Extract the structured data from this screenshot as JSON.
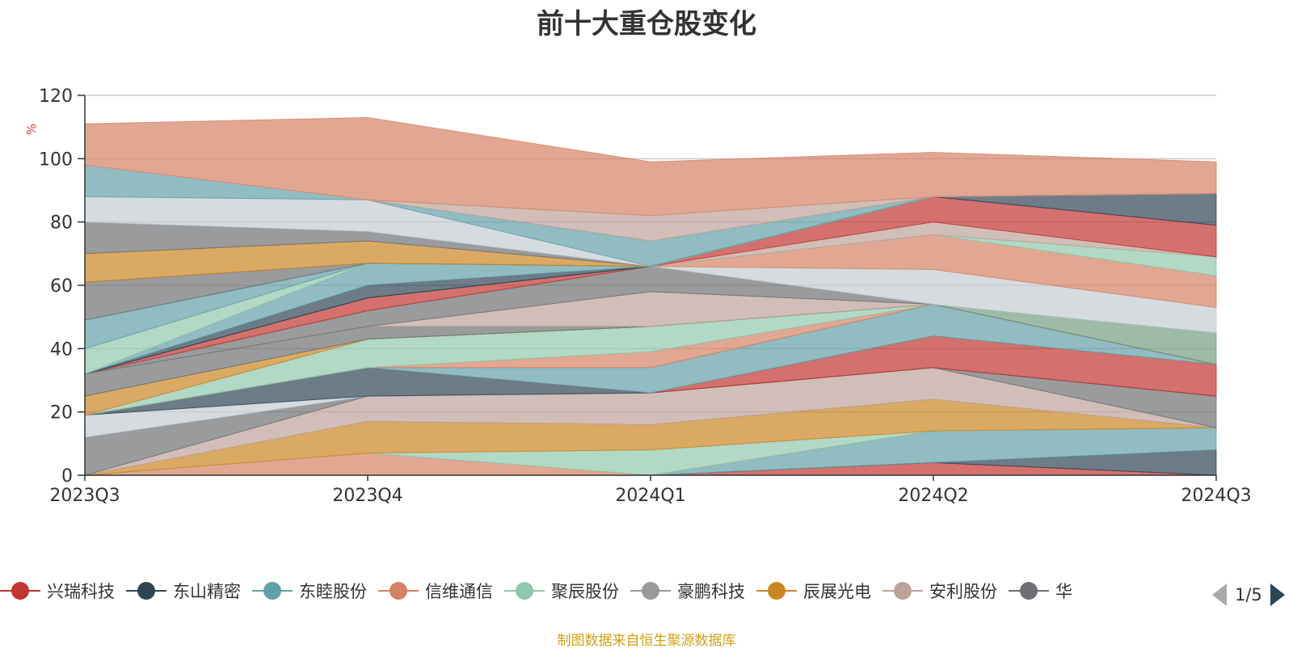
{
  "title": "前十大重仓股变化",
  "source_note": "制图数据来自恒生聚源数据库",
  "legend_page": "1/5",
  "chart_data": {
    "type": "area",
    "title": "前十大重仓股变化",
    "ylabel": "%",
    "ylim": [
      0,
      120
    ],
    "yticks": [
      0,
      20,
      40,
      60,
      80,
      100,
      120
    ],
    "grid": true,
    "categories": [
      "2023Q3",
      "2023Q4",
      "2024Q1",
      "2024Q2",
      "2024Q3"
    ],
    "legend_position": "bottom",
    "legend": [
      "兴瑞科技",
      "东山精密",
      "东睦股份",
      "信维通信",
      "聚辰股份",
      "豪鹏科技",
      "辰展光电",
      "安利股份",
      "华"
    ],
    "series": [
      {
        "name": "兴瑞科技",
        "color": "#c23531",
        "values": [
          0,
          0,
          0,
          4,
          0
        ]
      },
      {
        "name": "东山精密",
        "color": "#2f4554",
        "values": [
          0,
          0,
          0,
          0,
          8
        ]
      },
      {
        "name": "东睦股份",
        "color": "#61a0a8",
        "values": [
          0,
          0,
          0,
          10,
          7
        ]
      },
      {
        "name": "信维通信",
        "color": "#d48265",
        "values": [
          0,
          7,
          0,
          0,
          0
        ]
      },
      {
        "name": "聚辰股份",
        "color": "#91c7ae",
        "values": [
          0,
          0,
          8,
          0,
          0
        ]
      },
      {
        "name": "辰展光电",
        "color": "#ca8622",
        "values": [
          0,
          10,
          8,
          10,
          0
        ]
      },
      {
        "name": "安利股份",
        "color": "#bda29a",
        "values": [
          0,
          8,
          10,
          10,
          0
        ]
      },
      {
        "name": "华",
        "color": "#6e7074",
        "values": [
          12,
          0,
          0,
          0,
          10
        ]
      },
      {
        "name": "",
        "color": "#c4ccd3",
        "values": [
          7,
          0,
          0,
          0,
          0
        ]
      },
      {
        "name": "",
        "color": "#2f4554",
        "values": [
          0,
          9,
          0,
          0,
          0
        ]
      },
      {
        "name": "",
        "color": "#c23531",
        "values": [
          0,
          0,
          0,
          10,
          10
        ]
      },
      {
        "name": "",
        "color": "#61a0a8",
        "values": [
          0,
          0,
          8,
          10,
          0
        ]
      },
      {
        "name": "",
        "color": "#d48265",
        "values": [
          0,
          0,
          5,
          0,
          0
        ]
      },
      {
        "name": "",
        "color": "#91c7ae",
        "values": [
          0,
          9,
          8,
          0,
          0
        ]
      },
      {
        "name": "",
        "color": "#ca8622",
        "values": [
          6,
          0,
          0,
          0,
          0
        ]
      },
      {
        "name": "",
        "color": "#6e7074",
        "values": [
          7,
          4,
          0,
          0,
          0
        ]
      },
      {
        "name": "",
        "color": "#bda29a",
        "values": [
          0,
          0,
          11,
          0,
          0
        ]
      },
      {
        "name": "",
        "color": "#6e7074",
        "values": [
          0,
          5,
          8,
          0,
          0
        ]
      },
      {
        "name": "",
        "color": "#c23531",
        "values": [
          0,
          4,
          0,
          0,
          0
        ]
      },
      {
        "name": "",
        "color": "#749f83",
        "values": [
          0,
          0,
          0,
          0,
          10
        ]
      },
      {
        "name": "",
        "color": "#c4ccd3",
        "values": [
          0,
          0,
          0,
          11,
          8
        ]
      },
      {
        "name": "",
        "color": "#d48265",
        "values": [
          0,
          0,
          0,
          11,
          10
        ]
      },
      {
        "name": "",
        "color": "#91c7ae",
        "values": [
          0,
          0,
          0,
          0,
          6
        ]
      },
      {
        "name": "",
        "color": "#bda29a",
        "values": [
          0,
          0,
          0,
          4,
          0
        ]
      },
      {
        "name": "",
        "color": "#c23531",
        "values": [
          0,
          0,
          0,
          8,
          10
        ]
      },
      {
        "name": "",
        "color": "#2f4554",
        "values": [
          0,
          0,
          0,
          0,
          10
        ]
      },
      {
        "name": "",
        "color": "#2f4554",
        "values": [
          0,
          4,
          0,
          0,
          0
        ]
      },
      {
        "name": "",
        "color": "#61a0a8",
        "values": [
          0,
          7,
          0,
          0,
          0
        ]
      },
      {
        "name": "",
        "color": "#91c7ae",
        "values": [
          8,
          0,
          0,
          0,
          0
        ]
      },
      {
        "name": "",
        "color": "#61a0a8",
        "values": [
          9,
          0,
          0,
          0,
          0
        ]
      },
      {
        "name": "",
        "color": "#6e7074",
        "values": [
          12,
          0,
          0,
          0,
          0
        ]
      },
      {
        "name": "",
        "color": "#ca8622",
        "values": [
          9,
          7,
          0,
          0,
          0
        ]
      },
      {
        "name": "",
        "color": "#6e7074",
        "values": [
          10,
          3,
          0,
          0,
          0
        ]
      },
      {
        "name": "",
        "color": "#c4ccd3",
        "values": [
          8,
          10,
          0,
          0,
          0
        ]
      },
      {
        "name": "",
        "color": "#61a0a8",
        "values": [
          10,
          0,
          8,
          0,
          0
        ]
      },
      {
        "name": "",
        "color": "#bda29a",
        "values": [
          0,
          0,
          8,
          0,
          0
        ]
      },
      {
        "name": "",
        "color": "#c4ccd3",
        "values": [
          0,
          0,
          0,
          0,
          0
        ]
      },
      {
        "name": "",
        "color": "#d48265",
        "values": [
          13,
          26,
          17,
          14,
          10
        ]
      }
    ]
  }
}
